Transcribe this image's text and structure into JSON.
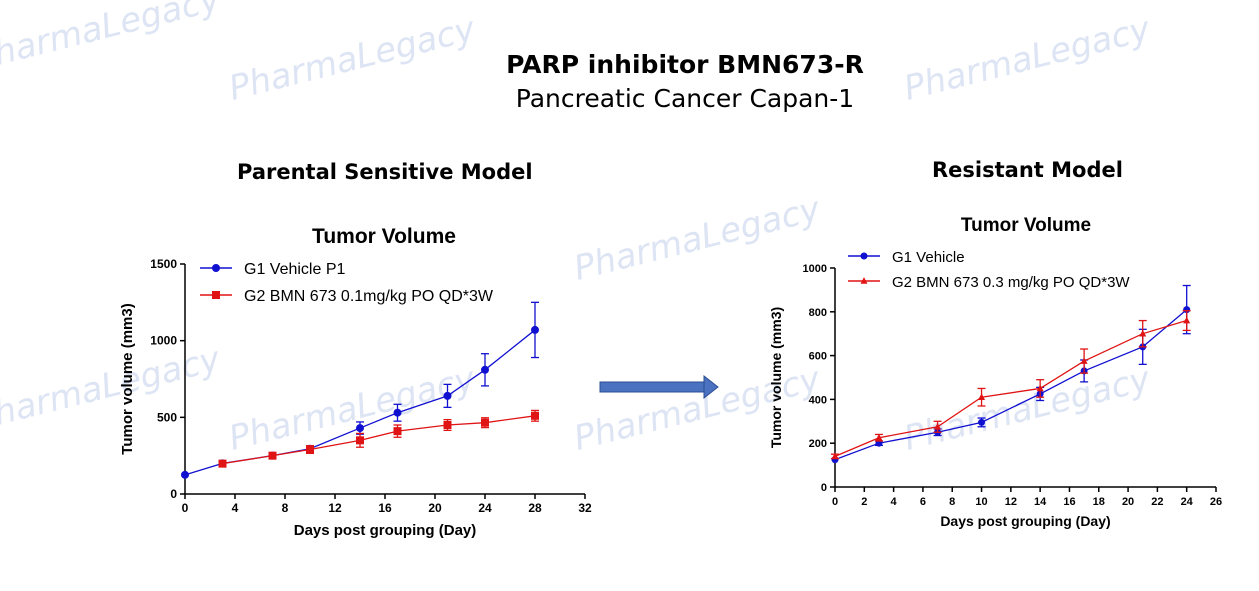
{
  "watermark": "PharmaLegacy",
  "title": "PARP inhibitor BMN673-R",
  "subtitle": "Pancreatic Cancer Capan-1",
  "colors": {
    "vehicle": "#1010d0",
    "treated": "#e01414",
    "arrow": "#4a72c0",
    "watermark": "#dde4f3"
  },
  "chart_data": [
    {
      "type": "line",
      "panel_title": "Parental Sensitive Model",
      "title": "Tumor Volume",
      "xlabel": "Days post grouping (Day)",
      "ylabel": "Tumor volume (mm3)",
      "xlim": [
        0,
        32
      ],
      "ylim": [
        0,
        1500
      ],
      "xticks": [
        0,
        4,
        8,
        12,
        16,
        20,
        24,
        28,
        32
      ],
      "yticks": [
        0,
        500,
        1000,
        1500
      ],
      "legend_position": "top-left",
      "series": [
        {
          "name": "G1 Vehicle P1",
          "marker": "circle",
          "color": "#1010d0",
          "x": [
            0,
            3,
            7,
            10,
            14,
            17,
            21,
            24,
            28
          ],
          "y": [
            125,
            200,
            250,
            295,
            430,
            530,
            640,
            810,
            1070
          ],
          "err": [
            0,
            10,
            15,
            20,
            40,
            55,
            75,
            105,
            180
          ]
        },
        {
          "name": "G2 BMN 673 0.1mg/kg PO QD*3W",
          "marker": "square",
          "color": "#e01414",
          "x": [
            3,
            7,
            10,
            14,
            17,
            21,
            24,
            28
          ],
          "y": [
            198,
            250,
            290,
            350,
            410,
            450,
            465,
            510
          ],
          "err": [
            12,
            15,
            25,
            45,
            40,
            35,
            32,
            35
          ]
        }
      ]
    },
    {
      "type": "line",
      "panel_title": "Resistant Model",
      "title": "Tumor Volume",
      "xlabel": "Days post grouping (Day)",
      "ylabel": "Tumor volume (mm3)",
      "xlim": [
        0,
        26
      ],
      "ylim": [
        0,
        1000
      ],
      "xticks": [
        0,
        2,
        4,
        6,
        8,
        10,
        12,
        14,
        16,
        18,
        20,
        22,
        24,
        26
      ],
      "yticks": [
        0,
        200,
        400,
        600,
        800,
        1000
      ],
      "legend_position": "top-left",
      "series": [
        {
          "name": "G1 Vehicle",
          "marker": "circle",
          "color": "#1010d0",
          "x": [
            0,
            3,
            7,
            10,
            14,
            17,
            21,
            24
          ],
          "y": [
            125,
            200,
            250,
            295,
            425,
            530,
            640,
            810
          ],
          "err": [
            0,
            10,
            15,
            20,
            30,
            50,
            80,
            110
          ]
        },
        {
          "name": "G2 BMN 673 0.3 mg/kg PO QD*3W",
          "marker": "triangle",
          "color": "#e01414",
          "x": [
            0,
            3,
            7,
            10,
            14,
            17,
            21,
            24
          ],
          "y": [
            140,
            225,
            275,
            410,
            450,
            575,
            700,
            760
          ],
          "err": [
            10,
            15,
            25,
            40,
            40,
            55,
            60,
            45
          ]
        }
      ]
    }
  ]
}
